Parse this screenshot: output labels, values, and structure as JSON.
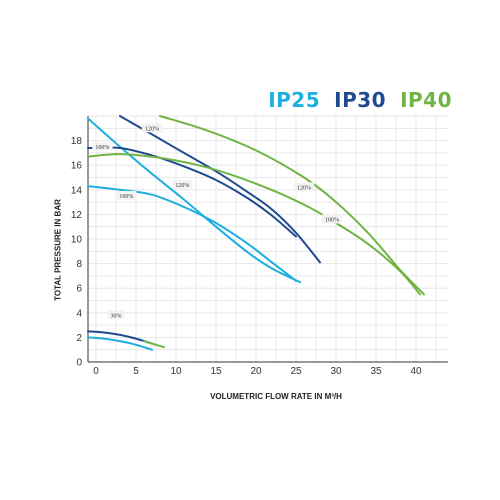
{
  "chart_data": {
    "type": "line",
    "title": "",
    "xlabel": "VOLUMETRIC FLOW RATE IN M³/H",
    "ylabel": "TOTAL PRESSURE IN BAR",
    "xlim": [
      -1,
      44
    ],
    "ylim": [
      0,
      20
    ],
    "xticks": [
      0,
      5,
      10,
      15,
      20,
      25,
      30,
      35,
      40
    ],
    "yticks": [
      0,
      2,
      4,
      6,
      8,
      10,
      12,
      14,
      16,
      18
    ],
    "grid": true,
    "legend": {
      "position": "top-right",
      "entries": [
        {
          "label": "IP25",
          "color": "#1eaee0"
        },
        {
          "label": "IP30",
          "color": "#1f4a8f"
        },
        {
          "label": "IP40",
          "color": "#6fb444"
        }
      ]
    },
    "series": [
      {
        "name": "IP25",
        "color": "#1eaee0",
        "curve": "120%",
        "points": [
          [
            -1,
            19.8
          ],
          [
            3,
            17.5
          ],
          [
            7,
            15.3
          ],
          [
            11,
            13.2
          ],
          [
            15,
            11.0
          ],
          [
            19,
            8.9
          ],
          [
            22,
            7.6
          ],
          [
            25.5,
            6.5
          ]
        ]
      },
      {
        "name": "IP25",
        "color": "#1eaee0",
        "curve": "100%",
        "points": [
          [
            -1,
            14.3
          ],
          [
            3,
            14.0
          ],
          [
            7,
            13.6
          ],
          [
            11,
            12.6
          ],
          [
            15,
            11.3
          ],
          [
            19,
            9.6
          ],
          [
            22,
            8.1
          ],
          [
            25,
            6.6
          ]
        ]
      },
      {
        "name": "IP25",
        "color": "#1eaee0",
        "curve": "30%",
        "points": [
          [
            -1,
            2.0
          ],
          [
            1,
            1.9
          ],
          [
            3,
            1.7
          ],
          [
            5,
            1.4
          ],
          [
            7,
            1.0
          ]
        ]
      },
      {
        "name": "IP30",
        "color": "#1f4a8f",
        "curve": "120%",
        "points": [
          [
            3,
            20.0
          ],
          [
            7,
            18.5
          ],
          [
            11,
            17.0
          ],
          [
            15,
            15.5
          ],
          [
            19,
            13.8
          ],
          [
            22,
            12.4
          ],
          [
            25,
            10.5
          ],
          [
            28,
            8.1
          ]
        ]
      },
      {
        "name": "IP30",
        "color": "#1f4a8f",
        "curve": "100%",
        "points": [
          [
            -1,
            17.4
          ],
          [
            3,
            17.4
          ],
          [
            7,
            16.8
          ],
          [
            11,
            15.9
          ],
          [
            15,
            14.8
          ],
          [
            19,
            13.3
          ],
          [
            22,
            11.9
          ],
          [
            25,
            10.2
          ]
        ]
      },
      {
        "name": "IP30",
        "color": "#1f4a8f",
        "curve": "30%",
        "points": [
          [
            -1,
            2.5
          ],
          [
            1,
            2.4
          ],
          [
            3,
            2.2
          ],
          [
            5,
            1.9
          ],
          [
            7,
            1.5
          ]
        ]
      },
      {
        "name": "IP40",
        "color": "#6fb444",
        "curve": "120%",
        "points": [
          [
            8,
            20.0
          ],
          [
            14,
            18.8
          ],
          [
            20,
            17.2
          ],
          [
            26,
            15.0
          ],
          [
            30,
            13.0
          ],
          [
            34,
            10.5
          ],
          [
            38,
            7.5
          ],
          [
            41,
            5.5
          ]
        ]
      },
      {
        "name": "IP40",
        "color": "#6fb444",
        "curve": "100%",
        "points": [
          [
            -1,
            16.7
          ],
          [
            3,
            16.9
          ],
          [
            8,
            16.6
          ],
          [
            14,
            15.8
          ],
          [
            20,
            14.5
          ],
          [
            26,
            12.8
          ],
          [
            30,
            11.3
          ],
          [
            34,
            9.6
          ],
          [
            38,
            7.4
          ],
          [
            40.5,
            5.5
          ]
        ]
      },
      {
        "name": "IP40",
        "color": "#6fb444",
        "curve": "30%",
        "points": [
          [
            6,
            1.7
          ],
          [
            7,
            1.5
          ],
          [
            8.5,
            1.2
          ]
        ]
      }
    ],
    "annotations": [
      {
        "text": "120%",
        "x": 7,
        "y": 19.0
      },
      {
        "text": "100%",
        "x": 0.8,
        "y": 17.5
      },
      {
        "text": "120%",
        "x": 10.8,
        "y": 14.4
      },
      {
        "text": "100%",
        "x": 3.8,
        "y": 13.5
      },
      {
        "text": "120%",
        "x": 26,
        "y": 14.2
      },
      {
        "text": "100%",
        "x": 29.5,
        "y": 11.6
      },
      {
        "text": "30%",
        "x": 2.5,
        "y": 3.8
      }
    ]
  }
}
